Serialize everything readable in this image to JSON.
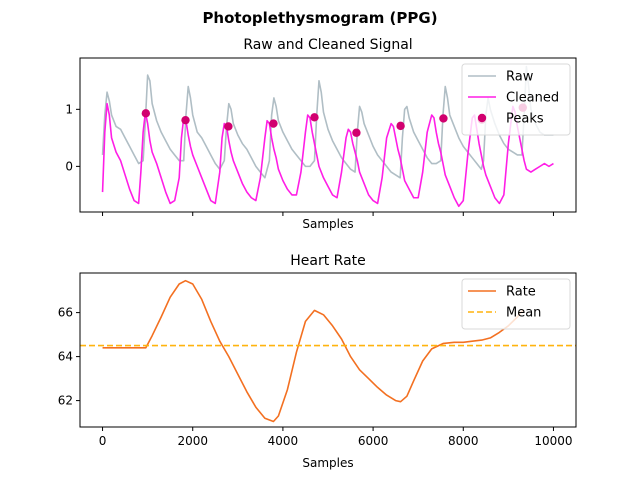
{
  "figure": {
    "title": "Photoplethysmogram (PPG)"
  },
  "chart_data": [
    {
      "type": "line",
      "title": "Raw and Cleaned Signal",
      "xlabel": "Samples",
      "ylabel": "",
      "xlim": [
        -500,
        10500
      ],
      "ylim": [
        -0.8,
        1.9
      ],
      "yticks": [
        0,
        1
      ],
      "ytick_labels": [
        "0",
        "1"
      ],
      "xticks": [
        0,
        2000,
        4000,
        6000,
        8000,
        10000
      ],
      "xtick_labels_visible": false,
      "legend": "top-right",
      "grid": false,
      "series": [
        {
          "name": "Raw",
          "color": "#b0bec5",
          "style": "line",
          "x": [
            0,
            50,
            100,
            150,
            200,
            300,
            400,
            500,
            600,
            700,
            800,
            900,
            950,
            1000,
            1050,
            1100,
            1200,
            1300,
            1400,
            1500,
            1600,
            1700,
            1800,
            1850,
            1900,
            1950,
            2000,
            2100,
            2200,
            2300,
            2400,
            2500,
            2600,
            2700,
            2750,
            2800,
            2850,
            2900,
            3000,
            3100,
            3200,
            3300,
            3400,
            3500,
            3600,
            3700,
            3750,
            3800,
            3850,
            3900,
            4000,
            4100,
            4200,
            4300,
            4400,
            4500,
            4600,
            4700,
            4750,
            4800,
            4850,
            4900,
            5000,
            5100,
            5200,
            5300,
            5400,
            5500,
            5600,
            5650,
            5700,
            5750,
            5800,
            5900,
            6000,
            6100,
            6200,
            6300,
            6400,
            6500,
            6600,
            6650,
            6700,
            6750,
            6800,
            6900,
            7000,
            7100,
            7200,
            7300,
            7400,
            7500,
            7550,
            7600,
            7650,
            7700,
            7800,
            7900,
            8000,
            8100,
            8200,
            8300,
            8400,
            8450,
            8500,
            8550,
            8600,
            8700,
            8800,
            8900,
            9000,
            9100,
            9200,
            9300,
            9350,
            9400,
            9450,
            9500,
            9600,
            9700,
            9800,
            9900,
            10000
          ],
          "y": [
            0.2,
            0.9,
            1.3,
            1.15,
            0.9,
            0.7,
            0.65,
            0.5,
            0.35,
            0.2,
            0.05,
            0.1,
            0.8,
            1.6,
            1.5,
            1.1,
            0.8,
            0.6,
            0.45,
            0.3,
            0.2,
            0.1,
            0.1,
            0.9,
            1.4,
            1.2,
            0.9,
            0.6,
            0.5,
            0.35,
            0.2,
            0.05,
            -0.05,
            0.1,
            0.7,
            1.1,
            1.0,
            0.75,
            0.55,
            0.4,
            0.3,
            0.15,
            0.0,
            -0.1,
            -0.2,
            0.1,
            0.9,
            1.2,
            1.05,
            0.8,
            0.6,
            0.45,
            0.3,
            0.2,
            0.1,
            0.0,
            0.0,
            0.1,
            0.9,
            1.5,
            1.3,
            0.95,
            0.65,
            0.45,
            0.3,
            0.15,
            0.05,
            -0.05,
            -0.1,
            0.6,
            1.05,
            0.95,
            0.75,
            0.55,
            0.35,
            0.2,
            0.1,
            0.0,
            -0.1,
            -0.15,
            -0.2,
            0.5,
            1.0,
            1.05,
            0.85,
            0.6,
            0.45,
            0.3,
            0.15,
            0.05,
            0.05,
            0.1,
            0.9,
            1.4,
            1.2,
            0.9,
            0.7,
            0.5,
            0.35,
            0.25,
            0.15,
            0.05,
            -0.05,
            0.1,
            0.9,
            1.2,
            1.0,
            0.75,
            0.55,
            0.4,
            0.3,
            0.25,
            0.2,
            0.2,
            0.9,
            1.75,
            1.4,
            1.0,
            0.75,
            0.6,
            0.55,
            0.55,
            0.55
          ]
        },
        {
          "name": "Cleaned",
          "color": "#ff1ee6",
          "style": "line",
          "x": [
            0,
            50,
            100,
            150,
            200,
            300,
            400,
            500,
            600,
            700,
            800,
            850,
            900,
            950,
            1000,
            1050,
            1100,
            1200,
            1300,
            1400,
            1500,
            1600,
            1700,
            1750,
            1800,
            1850,
            1900,
            1950,
            2000,
            2100,
            2200,
            2300,
            2400,
            2500,
            2600,
            2650,
            2700,
            2750,
            2800,
            2850,
            2900,
            3000,
            3100,
            3200,
            3300,
            3400,
            3500,
            3600,
            3650,
            3700,
            3750,
            3800,
            3850,
            3900,
            4000,
            4100,
            4200,
            4300,
            4400,
            4500,
            4550,
            4600,
            4650,
            4700,
            4750,
            4800,
            4900,
            5000,
            5100,
            5200,
            5300,
            5400,
            5450,
            5500,
            5550,
            5600,
            5650,
            5700,
            5800,
            5900,
            6000,
            6100,
            6200,
            6300,
            6400,
            6450,
            6500,
            6550,
            6600,
            6650,
            6700,
            6800,
            6900,
            7000,
            7100,
            7200,
            7300,
            7350,
            7400,
            7450,
            7500,
            7550,
            7600,
            7700,
            7800,
            7900,
            8000,
            8100,
            8200,
            8250,
            8300,
            8350,
            8400,
            8450,
            8500,
            8600,
            8700,
            8800,
            8900,
            9000,
            9100,
            9150,
            9200,
            9250,
            9300,
            9350,
            9400,
            9500,
            9600,
            9700,
            9800,
            9900,
            10000
          ],
          "y": [
            -0.45,
            0.6,
            1.1,
            0.9,
            0.5,
            0.25,
            0.1,
            -0.15,
            -0.4,
            -0.6,
            -0.65,
            -0.1,
            0.6,
            0.95,
            0.75,
            0.45,
            0.25,
            0.05,
            -0.2,
            -0.45,
            -0.65,
            -0.6,
            -0.2,
            0.5,
            0.85,
            0.8,
            0.55,
            0.35,
            0.2,
            0.0,
            -0.2,
            -0.4,
            -0.6,
            -0.65,
            -0.1,
            0.5,
            0.75,
            0.7,
            0.45,
            0.25,
            0.1,
            -0.1,
            -0.3,
            -0.45,
            -0.55,
            -0.6,
            -0.2,
            0.5,
            0.8,
            0.75,
            0.5,
            0.3,
            0.15,
            -0.05,
            -0.25,
            -0.4,
            -0.5,
            -0.5,
            -0.1,
            0.6,
            0.9,
            0.85,
            0.6,
            0.4,
            0.2,
            0.0,
            -0.2,
            -0.35,
            -0.5,
            -0.55,
            -0.1,
            0.5,
            0.65,
            0.6,
            0.4,
            0.25,
            0.1,
            -0.1,
            -0.3,
            -0.5,
            -0.6,
            -0.65,
            -0.2,
            0.5,
            0.75,
            0.7,
            0.5,
            0.3,
            0.15,
            -0.05,
            -0.25,
            -0.4,
            -0.55,
            -0.55,
            -0.1,
            0.6,
            0.9,
            0.85,
            0.6,
            0.4,
            0.25,
            0.05,
            -0.15,
            -0.35,
            -0.55,
            -0.7,
            -0.6,
            0.2,
            0.85,
            0.9,
            0.65,
            0.4,
            0.2,
            0.0,
            -0.15,
            -0.35,
            -0.55,
            -0.65,
            -0.5,
            0.4,
            1.05,
            0.95,
            0.7,
            0.5,
            0.3,
            0.1,
            -0.05,
            -0.1,
            -0.05,
            0.0,
            0.05,
            0.0,
            0.05
          ]
        },
        {
          "name": "Peaks",
          "color": "#d1006f",
          "style": "scatter",
          "x": [
            960,
            1840,
            2790,
            3790,
            4700,
            5630,
            6610,
            7560,
            8410,
            9320
          ],
          "y": [
            0.93,
            0.81,
            0.7,
            0.75,
            0.86,
            0.59,
            0.71,
            0.84,
            0.82,
            1.03
          ]
        }
      ]
    },
    {
      "type": "line",
      "title": "Heart Rate",
      "xlabel": "Samples",
      "ylabel": "",
      "xlim": [
        -500,
        10500
      ],
      "ylim": [
        60.8,
        67.8
      ],
      "yticks": [
        62,
        64,
        66
      ],
      "ytick_labels": [
        "62",
        "64",
        "66"
      ],
      "xticks": [
        0,
        2000,
        4000,
        6000,
        8000,
        10000
      ],
      "xtick_labels": [
        "0",
        "2000",
        "4000",
        "6000",
        "8000",
        "10000"
      ],
      "legend": "top-right",
      "grid": false,
      "series": [
        {
          "name": "Rate",
          "color": "#f37021",
          "style": "line",
          "x": [
            0,
            960,
            1100,
            1300,
            1500,
            1700,
            1840,
            2000,
            2200,
            2400,
            2600,
            2800,
            3000,
            3200,
            3400,
            3600,
            3790,
            3900,
            4100,
            4300,
            4500,
            4700,
            4900,
            5100,
            5300,
            5500,
            5700,
            5900,
            6100,
            6300,
            6500,
            6610,
            6750,
            6900,
            7100,
            7300,
            7560,
            7800,
            8000,
            8200,
            8410,
            8600,
            8800,
            9000,
            9200,
            9320
          ],
          "y": [
            64.4,
            64.4,
            64.95,
            65.8,
            66.7,
            67.3,
            67.45,
            67.3,
            66.6,
            65.6,
            64.7,
            64.0,
            63.2,
            62.4,
            61.7,
            61.2,
            61.05,
            61.3,
            62.5,
            64.2,
            65.6,
            66.1,
            65.9,
            65.4,
            64.8,
            64.0,
            63.4,
            63.0,
            62.6,
            62.25,
            62.0,
            61.95,
            62.2,
            62.9,
            63.8,
            64.35,
            64.6,
            64.65,
            64.65,
            64.7,
            64.75,
            64.85,
            65.1,
            65.4,
            65.8,
            66.1
          ]
        },
        {
          "name": "Mean",
          "color": "#ffb40e",
          "style": "dashed",
          "value": 64.5
        }
      ]
    }
  ]
}
